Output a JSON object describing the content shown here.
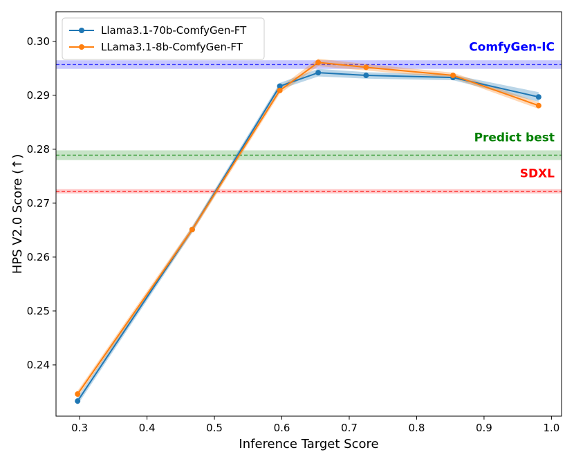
{
  "chart_data": {
    "type": "line",
    "xlabel": "Inference Target Score",
    "ylabel": "HPS V2.0 Score (↑)",
    "xlim": [
      0.265,
      1.015
    ],
    "ylim": [
      0.2305,
      0.3055
    ],
    "xticks": [
      0.3,
      0.4,
      0.5,
      0.6,
      0.7,
      0.8,
      0.9,
      1.0
    ],
    "xtick_labels": [
      "0.3",
      "0.4",
      "0.5",
      "0.6",
      "0.7",
      "0.8",
      "0.9",
      "1.0"
    ],
    "yticks": [
      0.24,
      0.25,
      0.26,
      0.27,
      0.28,
      0.29,
      0.3
    ],
    "ytick_labels": [
      "0.24",
      "0.25",
      "0.26",
      "0.27",
      "0.28",
      "0.29",
      "0.30"
    ],
    "grid": false,
    "legend_position": "top-left",
    "series": [
      {
        "name": "Llama3.1-70b-ComfyGen-FT",
        "color": "#1f77b4",
        "x": [
          0.297,
          0.467,
          0.597,
          0.654,
          0.725,
          0.854,
          0.981
        ],
        "y": [
          0.2333,
          0.2651,
          0.2917,
          0.2942,
          0.2937,
          0.2933,
          0.2897
        ],
        "band": [
          0.0007,
          0.0006,
          0.0006,
          0.0007,
          0.0006,
          0.0005,
          0.0009
        ]
      },
      {
        "name": "LLama3.1-8b-ComfyGen-FT",
        "color": "#ff7f0e",
        "x": [
          0.297,
          0.467,
          0.597,
          0.654,
          0.725,
          0.854,
          0.981
        ],
        "y": [
          0.2346,
          0.2651,
          0.2909,
          0.2961,
          0.2952,
          0.2937,
          0.2881
        ],
        "band": [
          0.0006,
          0.0006,
          0.0006,
          0.0007,
          0.0006,
          0.0005,
          0.0006
        ]
      }
    ],
    "reference_lines": [
      {
        "label": "ComfyGen-IC",
        "y": 0.2957,
        "band": 0.0008,
        "color": "#0000ff"
      },
      {
        "label": "Predict best",
        "y": 0.2789,
        "band": 0.0009,
        "color": "#008000"
      },
      {
        "label": "SDXL",
        "y": 0.2722,
        "band": 0.0004,
        "color": "#ff0000"
      }
    ]
  }
}
